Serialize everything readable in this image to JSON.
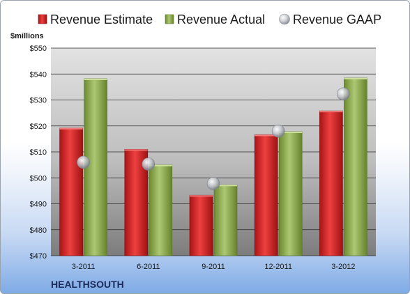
{
  "chart_data": {
    "type": "bar",
    "title": "",
    "unit_label": "$millions",
    "company": "HEALTHSOUTH",
    "categories": [
      "3-2011",
      "6-2011",
      "9-2011",
      "12-2011",
      "3-2012"
    ],
    "y_ticks": [
      "$470",
      "$480",
      "$490",
      "$500",
      "$510",
      "$520",
      "$530",
      "$540",
      "$550"
    ],
    "ylim": [
      470,
      550
    ],
    "grid": true,
    "legend_position": "top",
    "series": [
      {
        "name": "Revenue Estimate",
        "kind": "bar",
        "color": "#d42b2b",
        "values": [
          519.2,
          511.0,
          493.3,
          516.6,
          525.8
        ]
      },
      {
        "name": "Revenue Actual",
        "kind": "bar",
        "color": "#8fae4f",
        "values": [
          538.2,
          505.0,
          497.3,
          517.8,
          538.5
        ]
      },
      {
        "name": "Revenue GAAP",
        "kind": "marker",
        "color": "#b8bcc4",
        "values": [
          506.0,
          505.3,
          497.8,
          518.0,
          532.3
        ]
      }
    ]
  }
}
